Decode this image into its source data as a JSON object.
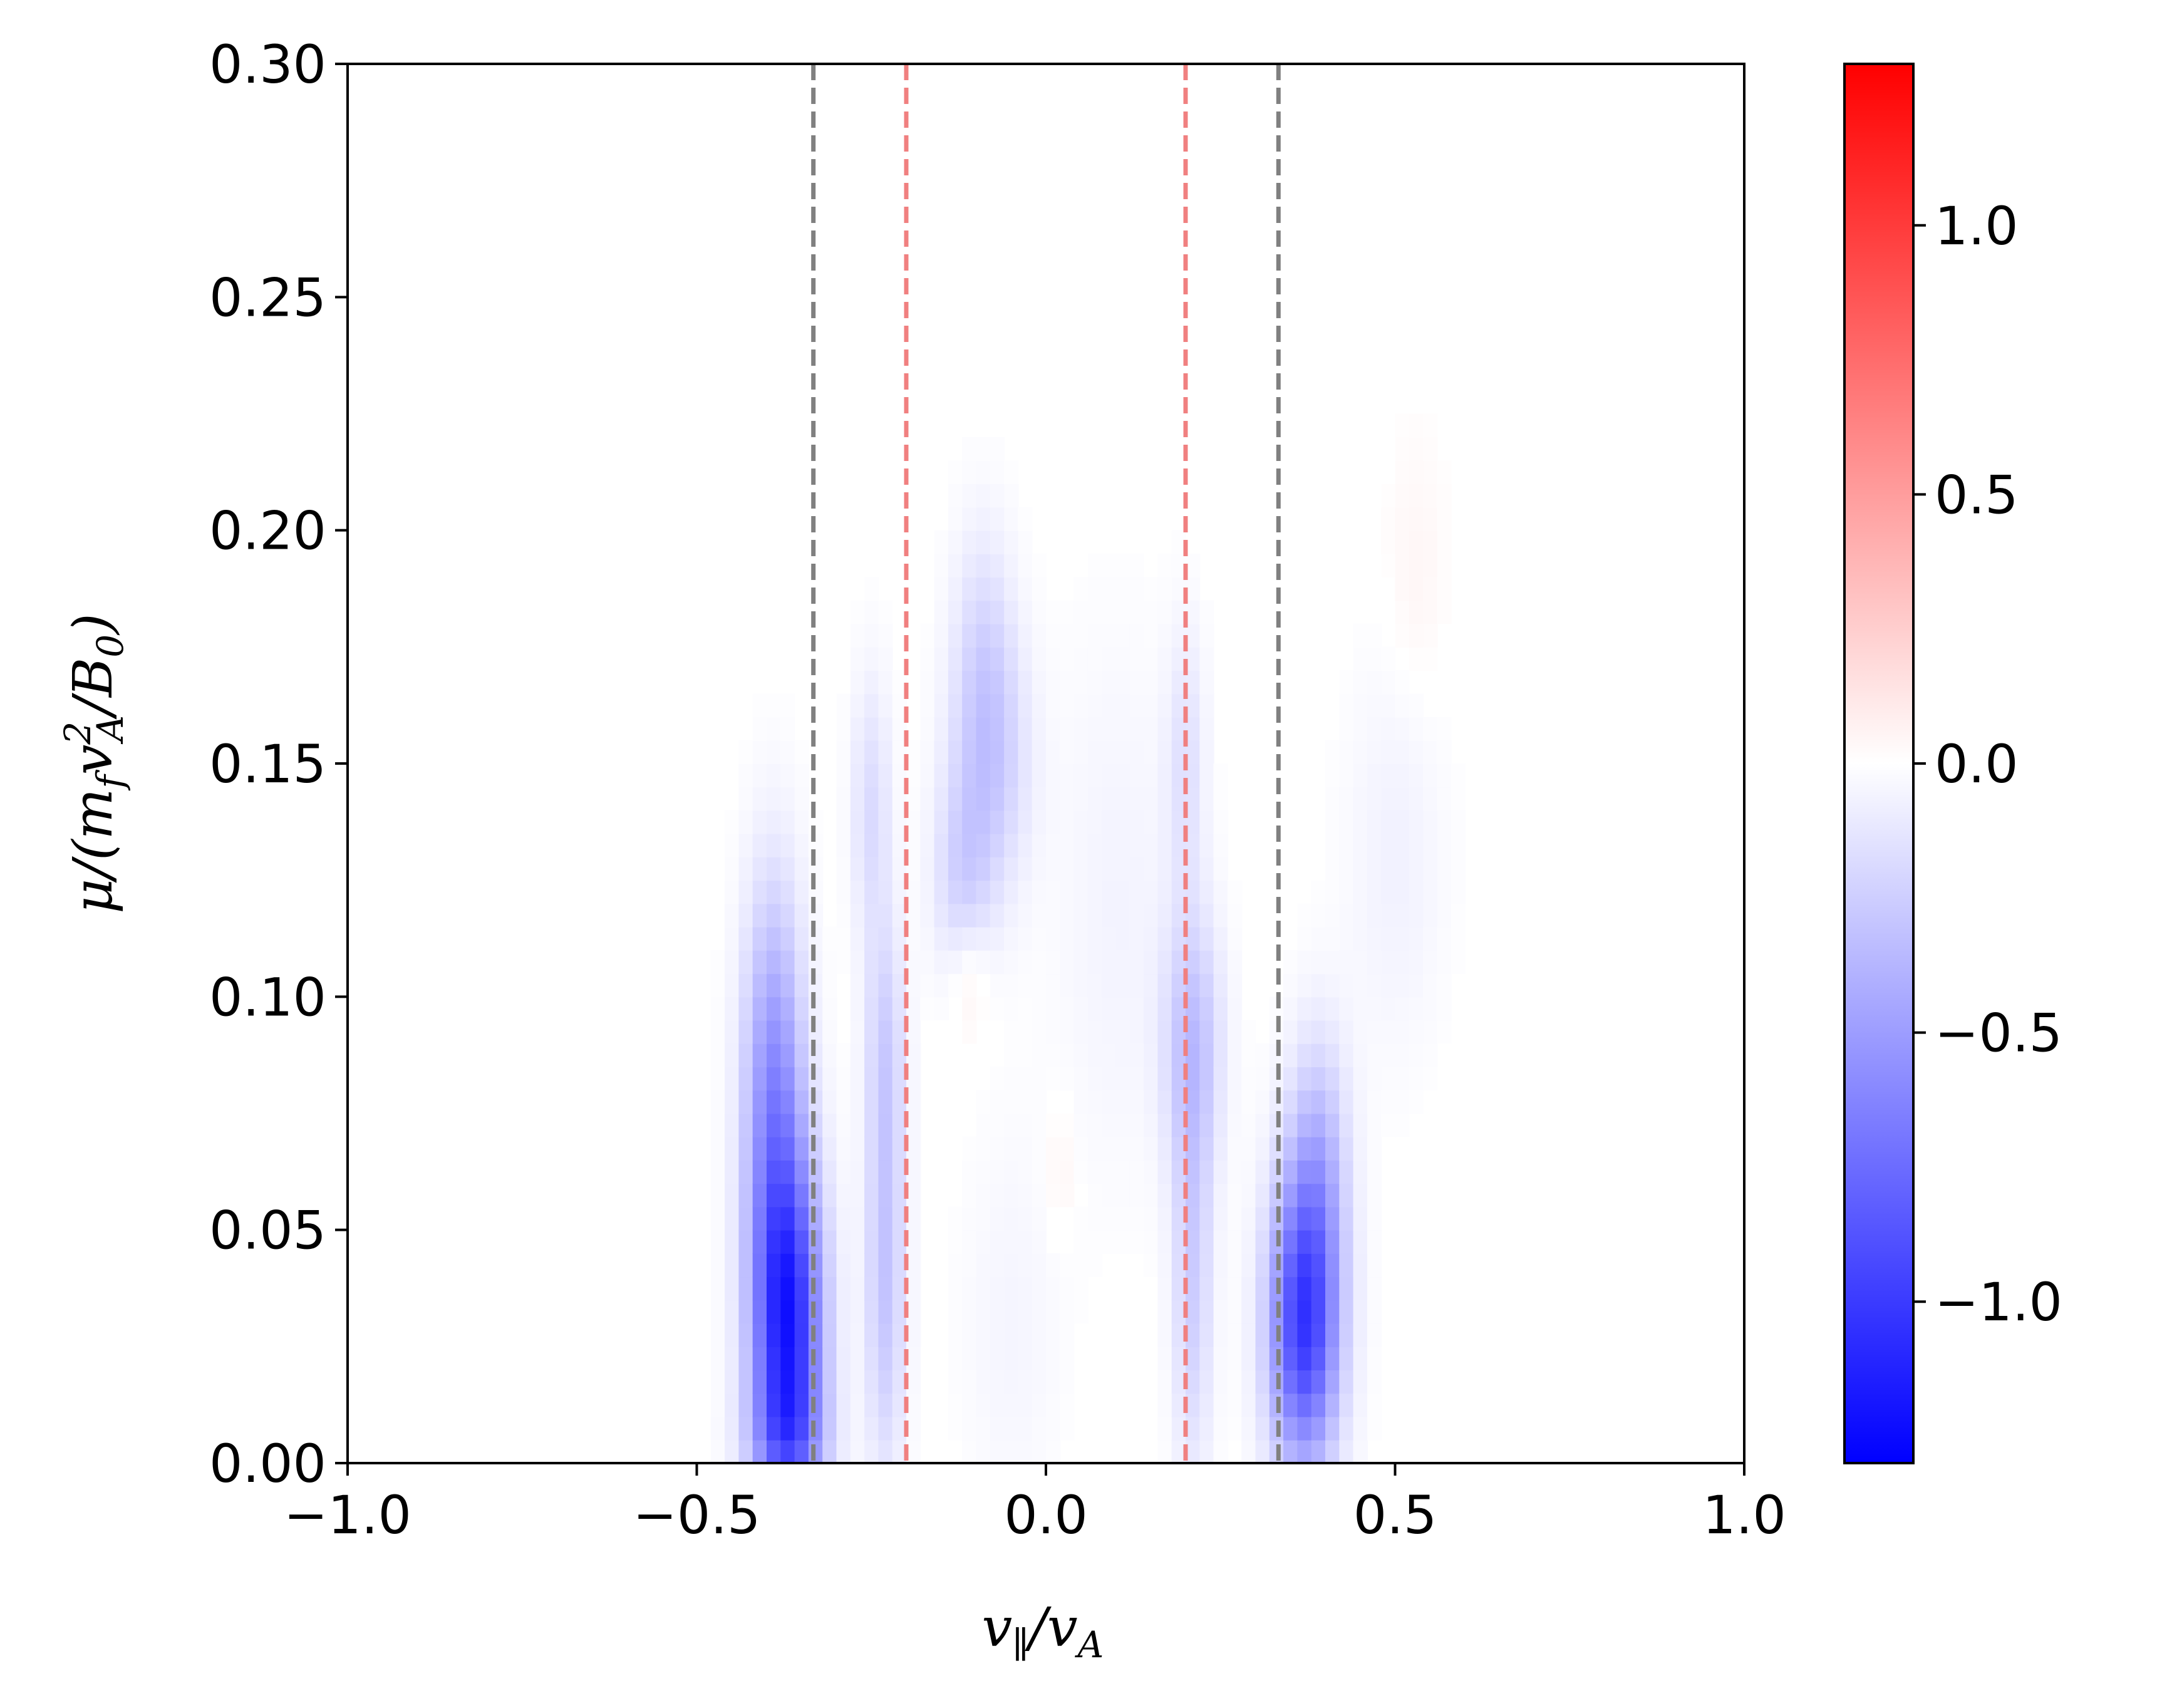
{
  "chart_data": {
    "type": "heatmap",
    "title": "",
    "xlabel": "v∥/vA",
    "ylabel": "μ/(mf vA²/B0)",
    "xlim": [
      -1.0,
      1.0
    ],
    "ylim": [
      0.0,
      0.3
    ],
    "x_ticks": [
      "−1.0",
      "−0.5",
      "0.0",
      "0.5",
      "1.0"
    ],
    "x_tick_values": [
      -1.0,
      -0.5,
      0.0,
      0.5,
      1.0
    ],
    "y_ticks": [
      "0.00",
      "0.05",
      "0.10",
      "0.15",
      "0.20",
      "0.25",
      "0.30"
    ],
    "y_tick_values": [
      0.0,
      0.05,
      0.1,
      0.15,
      0.2,
      0.25,
      0.3
    ],
    "colorbar": {
      "range": [
        -1.3,
        1.3
      ],
      "ticks": [
        "1.0",
        "0.5",
        "0.0",
        "−0.5",
        "−1.0"
      ],
      "tick_values": [
        1.0,
        0.5,
        0.0,
        -0.5,
        -1.0
      ],
      "colormap": "bwr",
      "low_color": "#0000ff",
      "mid_color": "#ffffff",
      "high_color": "#ff0000"
    },
    "vertical_lines": [
      {
        "x": -0.333,
        "color": "#808080",
        "style": "dashed"
      },
      {
        "x": -0.2,
        "color": "#f08080",
        "style": "dashed"
      },
      {
        "x": 0.2,
        "color": "#f08080",
        "style": "dashed"
      },
      {
        "x": 0.333,
        "color": "#808080",
        "style": "dashed"
      }
    ],
    "features": [
      {
        "x": -0.37,
        "y": 0.03,
        "sx": 0.035,
        "sy": 0.025,
        "value": -1.1
      },
      {
        "x": -0.39,
        "y": 0.08,
        "sx": 0.03,
        "sy": 0.03,
        "value": -0.55
      },
      {
        "x": -0.37,
        "y": 0.005,
        "sx": 0.04,
        "sy": 0.01,
        "value": -0.35
      },
      {
        "x": 0.37,
        "y": 0.03,
        "sx": 0.035,
        "sy": 0.022,
        "value": -1.0
      },
      {
        "x": 0.39,
        "y": 0.065,
        "sx": 0.03,
        "sy": 0.02,
        "value": -0.3
      },
      {
        "x": -0.23,
        "y": 0.04,
        "sx": 0.02,
        "sy": 0.03,
        "value": -0.3
      },
      {
        "x": -0.23,
        "y": 0.09,
        "sx": 0.02,
        "sy": 0.02,
        "value": -0.2
      },
      {
        "x": -0.25,
        "y": 0.14,
        "sx": 0.02,
        "sy": 0.02,
        "value": -0.18
      },
      {
        "x": 0.21,
        "y": 0.09,
        "sx": 0.03,
        "sy": 0.02,
        "value": -0.3
      },
      {
        "x": 0.21,
        "y": 0.04,
        "sx": 0.02,
        "sy": 0.03,
        "value": -0.25
      },
      {
        "x": 0.2,
        "y": 0.15,
        "sx": 0.02,
        "sy": 0.02,
        "value": -0.15
      },
      {
        "x": -0.08,
        "y": 0.15,
        "sx": 0.04,
        "sy": 0.02,
        "value": -0.25
      },
      {
        "x": -0.09,
        "y": 0.175,
        "sx": 0.03,
        "sy": 0.02,
        "value": -0.15
      },
      {
        "x": -0.12,
        "y": 0.125,
        "sx": 0.03,
        "sy": 0.015,
        "value": -0.2
      },
      {
        "x": -0.11,
        "y": 0.105,
        "sx": 0.02,
        "sy": 0.01,
        "value": 0.1
      },
      {
        "x": 0.02,
        "y": 0.063,
        "sx": 0.015,
        "sy": 0.01,
        "value": 0.06
      },
      {
        "x": 0.53,
        "y": 0.19,
        "sx": 0.03,
        "sy": 0.02,
        "value": 0.05
      },
      {
        "x": -0.05,
        "y": 0.03,
        "sx": 0.05,
        "sy": 0.03,
        "value": -0.05
      },
      {
        "x": 0.1,
        "y": 0.12,
        "sx": 0.06,
        "sy": 0.04,
        "value": -0.06
      },
      {
        "x": 0.5,
        "y": 0.13,
        "sx": 0.05,
        "sy": 0.03,
        "value": -0.07
      }
    ]
  }
}
